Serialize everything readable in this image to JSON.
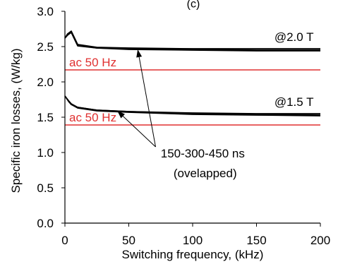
{
  "chart_data": {
    "type": "line",
    "title": "(c)",
    "xlabel": "Switching frequency, (kHz)",
    "ylabel": "Specific iron losses, (W/kg)",
    "xlim": [
      0,
      200
    ],
    "ylim": [
      0,
      3.0
    ],
    "xticks": [
      0,
      50,
      100,
      150,
      200
    ],
    "yticks": [
      0.0,
      0.5,
      1.0,
      1.5,
      2.0,
      2.5,
      3.0
    ],
    "ytick_labels": [
      "0.0",
      "0.5",
      "1.0",
      "1.5",
      "2.0",
      "2.5",
      "3.0"
    ],
    "grid": false,
    "series": [
      {
        "color": "#000000",
        "x": [
          0,
          2,
          5,
          10,
          25,
          50,
          100,
          150,
          200
        ],
        "y": [
          2.62,
          2.68,
          2.72,
          2.53,
          2.49,
          2.48,
          2.47,
          2.47,
          2.47
        ]
      },
      {
        "color": "#000000",
        "x": [
          0,
          2,
          5,
          10,
          25,
          50,
          100,
          150,
          200
        ],
        "y": [
          2.62,
          2.67,
          2.71,
          2.52,
          2.48,
          2.47,
          2.46,
          2.45,
          2.45
        ]
      },
      {
        "color": "#000000",
        "x": [
          0,
          2,
          5,
          10,
          25,
          50,
          100,
          150,
          200
        ],
        "y": [
          2.62,
          2.66,
          2.7,
          2.51,
          2.48,
          2.46,
          2.45,
          2.44,
          2.44
        ]
      },
      {
        "color": "#000000",
        "x": [
          0,
          3,
          5,
          10,
          25,
          50,
          100,
          150,
          200
        ],
        "y": [
          1.8,
          1.73,
          1.69,
          1.64,
          1.6,
          1.58,
          1.56,
          1.55,
          1.55
        ]
      },
      {
        "color": "#000000",
        "x": [
          0,
          3,
          5,
          10,
          25,
          50,
          100,
          150,
          200
        ],
        "y": [
          1.8,
          1.73,
          1.68,
          1.64,
          1.6,
          1.58,
          1.55,
          1.54,
          1.53
        ]
      },
      {
        "color": "#000000",
        "x": [
          0,
          3,
          5,
          10,
          25,
          50,
          100,
          150,
          200
        ],
        "y": [
          1.8,
          1.72,
          1.68,
          1.63,
          1.59,
          1.57,
          1.54,
          1.53,
          1.52
        ]
      }
    ],
    "reference_lines": [
      {
        "label": "ac 50 Hz",
        "y": 2.17,
        "color": "#e03030"
      },
      {
        "label": "ac 50 Hz",
        "y": 1.39,
        "color": "#e03030"
      }
    ],
    "annotations": [
      {
        "text": "@2.0 T",
        "x": 164,
        "y": 2.58
      },
      {
        "text": "@1.5 T",
        "x": 164,
        "y": 1.66
      },
      {
        "text": "150-300-450 ns",
        "x": 75,
        "y": 0.93
      },
      {
        "text": "(ovelapped)",
        "x": 85,
        "y": 0.65
      }
    ]
  }
}
